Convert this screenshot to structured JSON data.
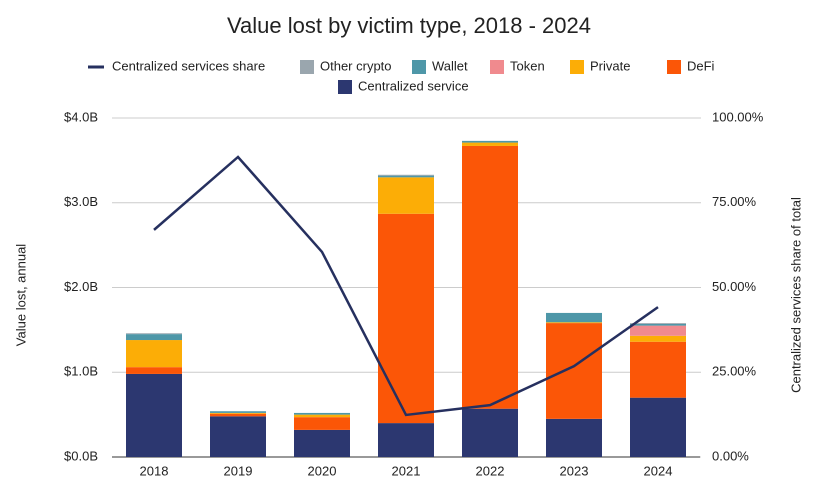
{
  "chart_data": {
    "type": "bar",
    "stacked": true,
    "title": "Value lost by victim type, 2018 - 2024",
    "y_label": "Value lost, annual",
    "y2_label": "Centralized services share of total",
    "categories": [
      "2018",
      "2019",
      "2020",
      "2021",
      "2022",
      "2023",
      "2024"
    ],
    "series": [
      {
        "name": "Centralized service",
        "color": "#2c3770",
        "values": [
          0.98,
          0.48,
          0.32,
          0.4,
          0.57,
          0.45,
          0.7
        ]
      },
      {
        "name": "DeFi",
        "color": "#fb5607",
        "values": [
          0.08,
          0.03,
          0.15,
          2.47,
          3.1,
          1.13,
          0.66
        ]
      },
      {
        "name": "Private",
        "color": "#fcad06",
        "values": [
          0.32,
          0.01,
          0.03,
          0.43,
          0.04,
          0.01,
          0.07
        ]
      },
      {
        "name": "Token",
        "color": "#f08a8e",
        "values": [
          0,
          0,
          0,
          0,
          0,
          0,
          0.12
        ]
      },
      {
        "name": "Wallet",
        "color": "#4e97a8",
        "values": [
          0.07,
          0.02,
          0.02,
          0.02,
          0.02,
          0.11,
          0.02
        ]
      },
      {
        "name": "Other crypto",
        "color": "#9aa6ae",
        "values": [
          0.01,
          0,
          0,
          0.01,
          0,
          0,
          0.01
        ]
      },
      {
        "name": "Centralized services share",
        "type": "line",
        "axis": "y2",
        "color": "#26305f",
        "values": [
          67,
          88.5,
          60.5,
          12.4,
          15.3,
          26.8,
          44.2
        ]
      }
    ],
    "ylim": [
      0,
      4
    ],
    "yticks": [
      {
        "value": 0,
        "label": "$0.0B"
      },
      {
        "value": 1,
        "label": "$1.0B"
      },
      {
        "value": 2,
        "label": "$2.0B"
      },
      {
        "value": 3,
        "label": "$3.0B"
      },
      {
        "value": 4,
        "label": "$4.0B"
      }
    ],
    "y2lim": [
      0,
      100
    ],
    "y2ticks": [
      {
        "value": 0,
        "label": "0.00%"
      },
      {
        "value": 25,
        "label": "25.00%"
      },
      {
        "value": 50,
        "label": "50.00%"
      },
      {
        "value": 75,
        "label": "75.00%"
      },
      {
        "value": 100,
        "label": "100.00%"
      }
    ],
    "grid": true
  }
}
